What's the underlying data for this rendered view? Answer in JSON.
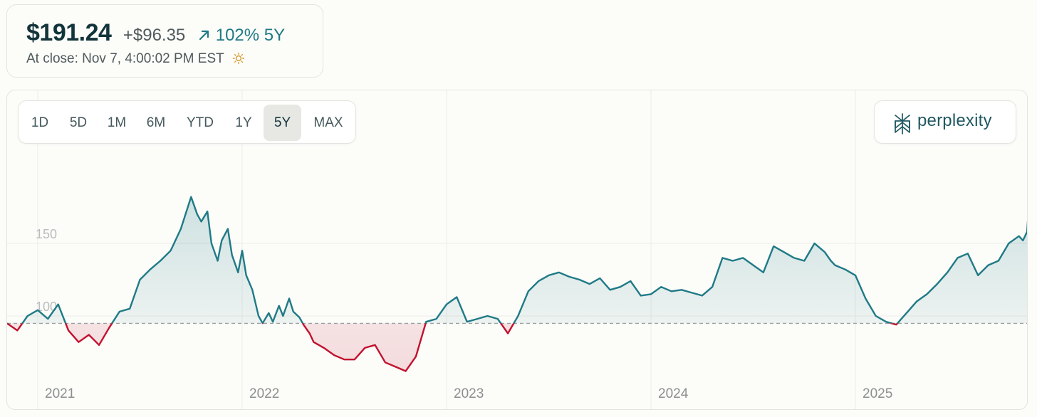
{
  "quote": {
    "price": "$191.24",
    "change": "+$96.35",
    "change_pct": "102% 5Y",
    "close_label": "At close: Nov 7, 4:00:02 PM EST",
    "icons": {
      "trend": "arrow-up-right-icon",
      "session": "sun-icon"
    }
  },
  "range_selector": {
    "options": [
      "1D",
      "5D",
      "1M",
      "6M",
      "YTD",
      "1Y",
      "5Y",
      "MAX"
    ],
    "selected": "5Y"
  },
  "brand": {
    "name": "perplexity",
    "icon": "perplexity-logo-icon"
  },
  "colors": {
    "up": "#1f7a86",
    "down": "#c1122f",
    "baseline": "#9aa0a3",
    "text_primary": "#13343b",
    "text_secondary": "#4f5a5c"
  },
  "chart_data": {
    "type": "area",
    "title": "",
    "xlabel": "",
    "ylabel": "",
    "x_ticks": [
      "2021",
      "2022",
      "2023",
      "2024",
      "2025"
    ],
    "y_ticks": [
      100,
      150
    ],
    "ylim": [
      40,
      210
    ],
    "baseline": 94.89,
    "grid": true,
    "series": [
      {
        "x": [
          2020.85,
          2020.9,
          2020.95,
          2021.0,
          2021.05,
          2021.1,
          2021.15,
          2021.2,
          2021.25,
          2021.3,
          2021.35,
          2021.4,
          2021.45,
          2021.5,
          2021.55,
          2021.6,
          2021.65,
          2021.7,
          2021.75,
          2021.78,
          2021.8,
          2021.83,
          2021.85,
          2021.88,
          2021.9,
          2021.93,
          2021.95,
          2021.98,
          2022.0,
          2022.02,
          2022.05,
          2022.08,
          2022.1,
          2022.13,
          2022.15,
          2022.18,
          2022.2,
          2022.23,
          2022.25,
          2022.28,
          2022.3,
          2022.33,
          2022.35,
          2022.4,
          2022.45,
          2022.5,
          2022.55,
          2022.6,
          2022.65,
          2022.7,
          2022.75,
          2022.8,
          2022.85,
          2022.9,
          2022.95,
          2023.0,
          2023.05,
          2023.1,
          2023.15,
          2023.2,
          2023.25,
          2023.3,
          2023.35,
          2023.4,
          2023.45,
          2023.5,
          2023.55,
          2023.6,
          2023.65,
          2023.7,
          2023.75,
          2023.8,
          2023.85,
          2023.9,
          2023.95,
          2024.0,
          2024.05,
          2024.1,
          2024.15,
          2024.2,
          2024.25,
          2024.3,
          2024.35,
          2024.4,
          2024.45,
          2024.5,
          2024.55,
          2024.6,
          2024.65,
          2024.7,
          2024.75,
          2024.8,
          2024.85,
          2024.88,
          2024.9,
          2024.95,
          2025.0,
          2025.05,
          2025.1,
          2025.15,
          2025.2,
          2025.25,
          2025.3,
          2025.35,
          2025.4,
          2025.45,
          2025.5,
          2025.55,
          2025.6,
          2025.65,
          2025.7,
          2025.75,
          2025.8,
          2025.82,
          2025.84,
          2025.85,
          2025.86
        ],
        "y": [
          94.9,
          90,
          100,
          104,
          98,
          108,
          90,
          82,
          87,
          80,
          92,
          103,
          105,
          125,
          132,
          138,
          145,
          160,
          182,
          170,
          165,
          172,
          150,
          138,
          152,
          160,
          142,
          130,
          145,
          128,
          118,
          100,
          95,
          102,
          96,
          107,
          100,
          112,
          103,
          99,
          94,
          88,
          82,
          78,
          73,
          70,
          70,
          78,
          80,
          68,
          65,
          62,
          72,
          96,
          98,
          108,
          113,
          96,
          98,
          100,
          98,
          88,
          100,
          117,
          124,
          128,
          130,
          127,
          125,
          122,
          126,
          118,
          120,
          124,
          114,
          115,
          120,
          117,
          118,
          116,
          114,
          120,
          140,
          138,
          140,
          135,
          130,
          148,
          144,
          140,
          138,
          150,
          144,
          138,
          135,
          132,
          128,
          112,
          100,
          96,
          94,
          102,
          110,
          115,
          122,
          130,
          140,
          143,
          128,
          135,
          138,
          150,
          155,
          152,
          158,
          178,
          190
        ]
      }
    ]
  }
}
